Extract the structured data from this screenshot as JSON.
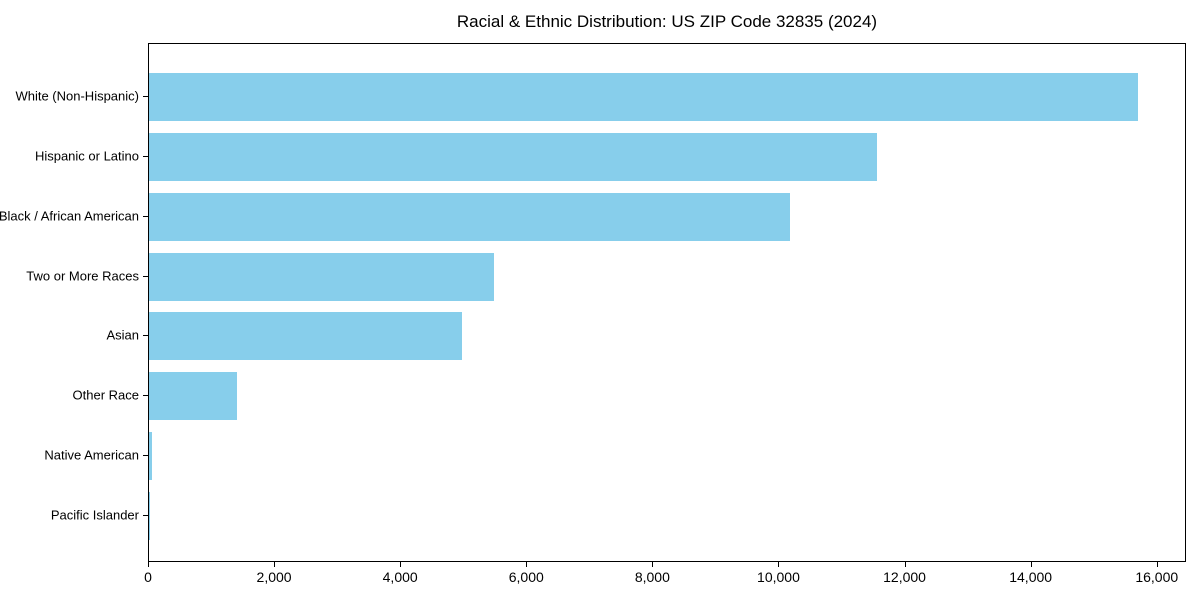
{
  "chart_data": {
    "type": "bar",
    "orientation": "horizontal",
    "title": "Racial & Ethnic Distribution: US ZIP Code 32835 (2024)",
    "categories": [
      "White (Non-Hispanic)",
      "Hispanic or Latino",
      "Black / African American",
      "Two or More Races",
      "Asian",
      "Other Race",
      "Native American",
      "Pacific Islander"
    ],
    "values": [
      15680,
      11540,
      10160,
      5470,
      4960,
      1400,
      40,
      15
    ],
    "xlabel": "",
    "ylabel": "",
    "xlim": [
      0,
      16464
    ],
    "x_ticks": [
      0,
      2000,
      4000,
      6000,
      8000,
      10000,
      12000,
      14000,
      16000
    ],
    "x_tick_labels": [
      "0",
      "2,000",
      "4,000",
      "6,000",
      "8,000",
      "10,000",
      "12,000",
      "14,000",
      "16,000"
    ],
    "bar_color": "#87CEEB",
    "grid": false,
    "legend": "none"
  }
}
